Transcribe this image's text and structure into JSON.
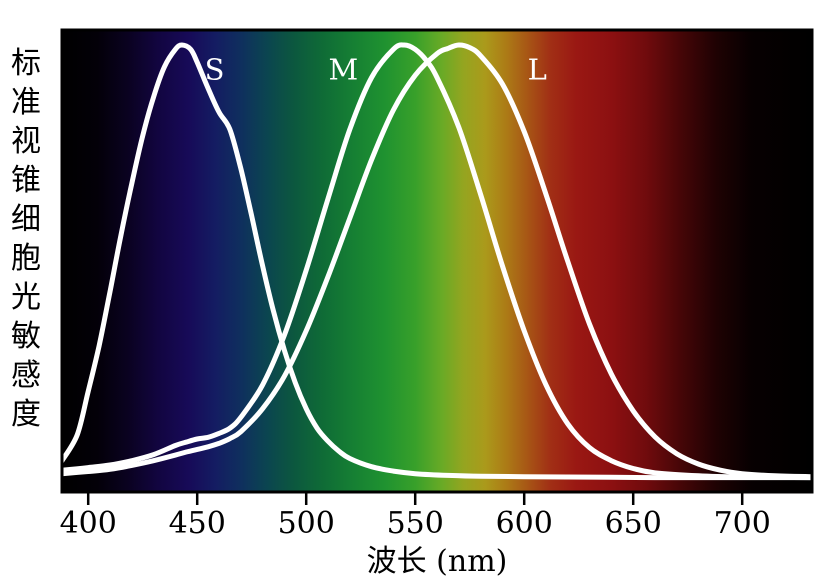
{
  "page": {
    "background": "#ffffff"
  },
  "chart_data": {
    "type": "line",
    "xlabel": "波长 (nm)",
    "ylabel": "标准视锥细胞光敏感度",
    "x_range_nm": [
      388,
      732
    ],
    "y_range": [
      0,
      1.08
    ],
    "xticks": [
      400,
      450,
      500,
      550,
      600,
      650,
      700
    ],
    "grid": false,
    "legend_position": "inline-curve-labels",
    "curve_color": "#ffffff",
    "frame_color": "#000000",
    "tick_label_color": "#000000",
    "annotations": [
      {
        "text": "S",
        "wavelength": 458,
        "value": 0.95
      },
      {
        "text": "M",
        "wavelength": 517,
        "value": 0.95
      },
      {
        "text": "L",
        "wavelength": 606,
        "value": 0.95
      }
    ],
    "series": [
      {
        "name": "S",
        "peak_nm": 443,
        "points": [
          [
            388,
            0.04
          ],
          [
            395,
            0.1
          ],
          [
            400,
            0.2
          ],
          [
            405,
            0.305
          ],
          [
            410,
            0.43
          ],
          [
            415,
            0.56
          ],
          [
            420,
            0.68
          ],
          [
            425,
            0.79
          ],
          [
            430,
            0.88
          ],
          [
            435,
            0.95
          ],
          [
            440,
            0.99
          ],
          [
            443,
            1.0
          ],
          [
            447,
            0.99
          ],
          [
            450,
            0.96
          ],
          [
            455,
            0.9
          ],
          [
            460,
            0.845
          ],
          [
            465,
            0.805
          ],
          [
            470,
            0.715
          ],
          [
            475,
            0.605
          ],
          [
            480,
            0.49
          ],
          [
            485,
            0.385
          ],
          [
            490,
            0.295
          ],
          [
            495,
            0.22
          ],
          [
            500,
            0.16
          ],
          [
            505,
            0.115
          ],
          [
            510,
            0.085
          ],
          [
            515,
            0.062
          ],
          [
            520,
            0.045
          ],
          [
            530,
            0.026
          ],
          [
            540,
            0.016
          ],
          [
            550,
            0.01
          ],
          [
            565,
            0.006
          ],
          [
            580,
            0.004
          ],
          [
            600,
            0.003
          ],
          [
            630,
            0.002
          ],
          [
            660,
            0.001
          ],
          [
            700,
            0.001
          ],
          [
            732,
            0.001
          ]
        ]
      },
      {
        "name": "M",
        "peak_nm": 544,
        "points": [
          [
            388,
            0.018
          ],
          [
            400,
            0.024
          ],
          [
            410,
            0.03
          ],
          [
            420,
            0.04
          ],
          [
            430,
            0.054
          ],
          [
            440,
            0.075
          ],
          [
            445,
            0.083
          ],
          [
            450,
            0.09
          ],
          [
            455,
            0.094
          ],
          [
            460,
            0.103
          ],
          [
            465,
            0.115
          ],
          [
            470,
            0.14
          ],
          [
            480,
            0.215
          ],
          [
            490,
            0.33
          ],
          [
            500,
            0.48
          ],
          [
            510,
            0.645
          ],
          [
            520,
            0.805
          ],
          [
            530,
            0.925
          ],
          [
            540,
            0.99
          ],
          [
            545,
            1.0
          ],
          [
            550,
            0.99
          ],
          [
            555,
            0.965
          ],
          [
            560,
            0.925
          ],
          [
            570,
            0.81
          ],
          [
            580,
            0.655
          ],
          [
            590,
            0.49
          ],
          [
            600,
            0.34
          ],
          [
            610,
            0.215
          ],
          [
            620,
            0.125
          ],
          [
            630,
            0.07
          ],
          [
            640,
            0.04
          ],
          [
            650,
            0.022
          ],
          [
            660,
            0.012
          ],
          [
            680,
            0.005
          ],
          [
            700,
            0.002
          ],
          [
            732,
            0.001
          ]
        ]
      },
      {
        "name": "L",
        "peak_nm": 570,
        "points": [
          [
            388,
            0.01
          ],
          [
            400,
            0.015
          ],
          [
            410,
            0.02
          ],
          [
            420,
            0.029
          ],
          [
            430,
            0.04
          ],
          [
            440,
            0.053
          ],
          [
            445,
            0.06
          ],
          [
            450,
            0.066
          ],
          [
            455,
            0.072
          ],
          [
            460,
            0.08
          ],
          [
            465,
            0.091
          ],
          [
            470,
            0.107
          ],
          [
            480,
            0.16
          ],
          [
            490,
            0.235
          ],
          [
            500,
            0.34
          ],
          [
            510,
            0.465
          ],
          [
            520,
            0.6
          ],
          [
            530,
            0.735
          ],
          [
            540,
            0.85
          ],
          [
            550,
            0.93
          ],
          [
            560,
            0.98
          ],
          [
            565,
            0.992
          ],
          [
            570,
            1.0
          ],
          [
            575,
            0.994
          ],
          [
            580,
            0.975
          ],
          [
            590,
            0.91
          ],
          [
            600,
            0.8
          ],
          [
            610,
            0.655
          ],
          [
            620,
            0.5
          ],
          [
            630,
            0.355
          ],
          [
            640,
            0.24
          ],
          [
            650,
            0.155
          ],
          [
            660,
            0.095
          ],
          [
            670,
            0.056
          ],
          [
            680,
            0.032
          ],
          [
            690,
            0.018
          ],
          [
            700,
            0.01
          ],
          [
            715,
            0.005
          ],
          [
            732,
            0.003
          ]
        ]
      }
    ],
    "background_gradient": [
      {
        "nm": 388,
        "color": "#000000"
      },
      {
        "nm": 404,
        "color": "#030008"
      },
      {
        "nm": 418,
        "color": "#0a0220"
      },
      {
        "nm": 432,
        "color": "#120540"
      },
      {
        "nm": 446,
        "color": "#170a58"
      },
      {
        "nm": 458,
        "color": "#141c62"
      },
      {
        "nm": 470,
        "color": "#0f2f5e"
      },
      {
        "nm": 482,
        "color": "#0b4550"
      },
      {
        "nm": 494,
        "color": "#0c573f"
      },
      {
        "nm": 508,
        "color": "#0f6c36"
      },
      {
        "nm": 522,
        "color": "#168033"
      },
      {
        "nm": 536,
        "color": "#1f9230"
      },
      {
        "nm": 550,
        "color": "#38a02a"
      },
      {
        "nm": 562,
        "color": "#68aa26"
      },
      {
        "nm": 572,
        "color": "#94a520"
      },
      {
        "nm": 582,
        "color": "#ab9a1b"
      },
      {
        "nm": 592,
        "color": "#ac7a16"
      },
      {
        "nm": 602,
        "color": "#a75415"
      },
      {
        "nm": 612,
        "color": "#a12f15"
      },
      {
        "nm": 624,
        "color": "#9a1813"
      },
      {
        "nm": 640,
        "color": "#8c1011"
      },
      {
        "nm": 656,
        "color": "#700b0d"
      },
      {
        "nm": 672,
        "color": "#450607"
      },
      {
        "nm": 688,
        "color": "#1f0203"
      },
      {
        "nm": 704,
        "color": "#070001"
      },
      {
        "nm": 732,
        "color": "#000000"
      }
    ]
  }
}
